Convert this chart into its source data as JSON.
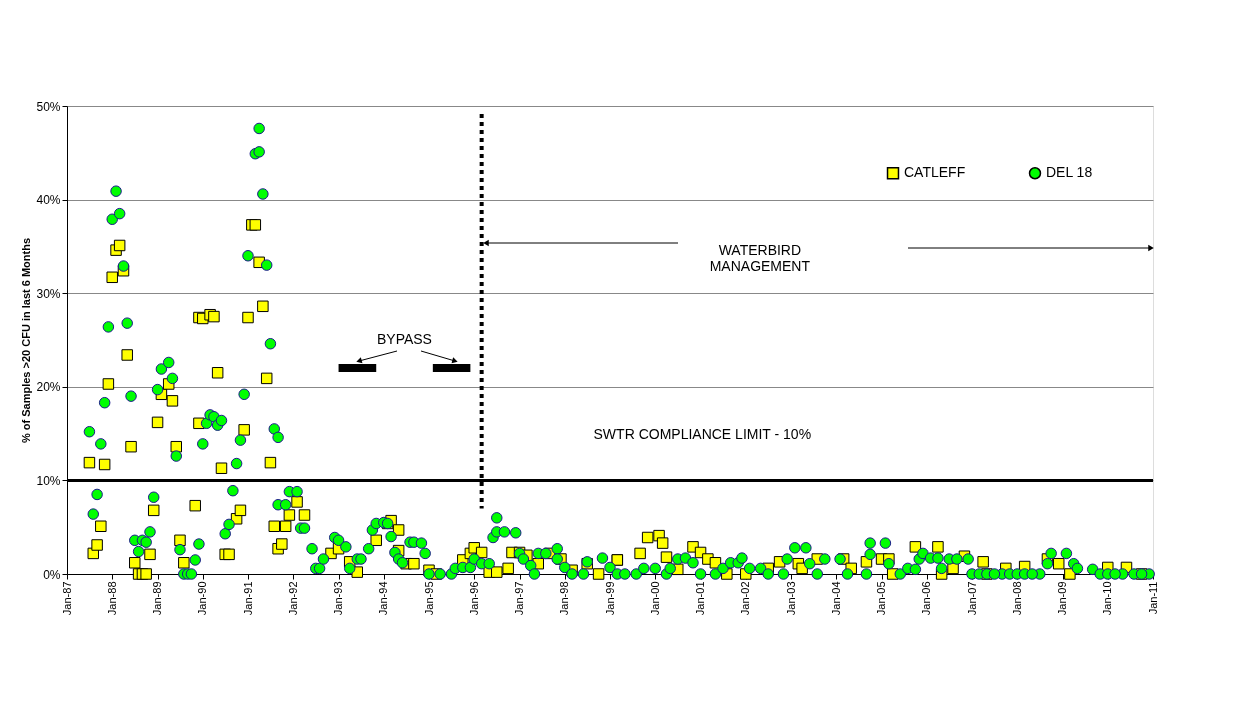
{
  "chart_data": {
    "type": "scatter",
    "ylabel": "% of Samples >20 CFU in last 6 Months",
    "xlim": [
      "1987-01",
      "2011-01"
    ],
    "xticks": [
      {
        "value": "1987-01",
        "label": "Jan-87"
      },
      {
        "value": "1988-01",
        "label": "Jan-88"
      },
      {
        "value": "1989-01",
        "label": "Jan-89"
      },
      {
        "value": "1990-01",
        "label": "Jan-90"
      },
      {
        "value": "1991-01",
        "label": "Jan-91"
      },
      {
        "value": "1992-01",
        "label": "Jan-92"
      },
      {
        "value": "1993-01",
        "label": "Jan-93"
      },
      {
        "value": "1994-01",
        "label": "Jan-94"
      },
      {
        "value": "1995-01",
        "label": "Jan-95"
      },
      {
        "value": "1996-01",
        "label": "Jan-96"
      },
      {
        "value": "1997-01",
        "label": "Jan-97"
      },
      {
        "value": "1998-01",
        "label": "Jan-98"
      },
      {
        "value": "1999-01",
        "label": "Jan-99"
      },
      {
        "value": "2000-01",
        "label": "Jan-00"
      },
      {
        "value": "2001-01",
        "label": "Jan-01"
      },
      {
        "value": "2002-01",
        "label": "Jan-02"
      },
      {
        "value": "2003-01",
        "label": "Jan-03"
      },
      {
        "value": "2004-01",
        "label": "Jan-04"
      },
      {
        "value": "2005-01",
        "label": "Jan-05"
      },
      {
        "value": "2006-01",
        "label": "Jan-06"
      },
      {
        "value": "2007-01",
        "label": "Jan-07"
      },
      {
        "value": "2008-01",
        "label": "Jan-08"
      },
      {
        "value": "2009-01",
        "label": "Jan-09"
      },
      {
        "value": "2010-01",
        "label": "Jan-10"
      },
      {
        "value": "2011-01",
        "label": "Jan-11"
      }
    ],
    "ylim": [
      0,
      50
    ],
    "yticks": [
      {
        "value": 0,
        "label": "0%"
      },
      {
        "value": 10,
        "label": "10%"
      },
      {
        "value": 20,
        "label": "20%"
      },
      {
        "value": 30,
        "label": "30%"
      },
      {
        "value": 40,
        "label": "40%"
      },
      {
        "value": 50,
        "label": "50%"
      }
    ],
    "grid": "y",
    "legend": "top right",
    "series": [
      {
        "name": "CATLEFF",
        "color": "#ffff00",
        "marker": "square",
        "x": [
          "1987-07",
          "1987-08",
          "1987-09",
          "1987-10",
          "1987-11",
          "1987-12",
          "1988-01",
          "1988-02",
          "1988-03",
          "1988-04",
          "1988-05",
          "1988-06",
          "1988-07",
          "1988-08",
          "1988-09",
          "1988-10",
          "1988-11",
          "1988-12",
          "1989-01",
          "1989-02",
          "1989-04",
          "1989-05",
          "1989-06",
          "1989-07",
          "1989-08",
          "1989-11",
          "1989-12",
          "1989-12",
          "1990-01",
          "1990-03",
          "1990-04",
          "1990-05",
          "1990-06",
          "1990-07",
          "1990-08",
          "1990-10",
          "1990-11",
          "1990-12",
          "1991-01",
          "1991-02",
          "1991-03",
          "1991-04",
          "1991-05",
          "1991-06",
          "1991-07",
          "1991-08",
          "1991-09",
          "1991-10",
          "1991-11",
          "1991-12",
          "1992-02",
          "1992-04",
          "1992-11",
          "1993-01",
          "1993-04",
          "1993-06",
          "1993-11",
          "1994-02",
          "1994-03",
          "1994-05",
          "1994-05",
          "1994-07",
          "1994-09",
          "1995-01",
          "1995-03",
          "1995-10",
          "1995-12",
          "1996-01",
          "1996-03",
          "1996-05",
          "1996-07",
          "1996-10",
          "1996-11",
          "1997-01",
          "1997-03",
          "1997-06",
          "1997-09",
          "1997-12",
          "1998-03",
          "1998-07",
          "1998-10",
          "1999-03",
          "1999-03",
          "1999-09",
          "1999-11",
          "2000-02",
          "2000-03",
          "2000-04",
          "2000-07",
          "2000-11",
          "2001-01",
          "2001-03",
          "2001-05",
          "2001-08",
          "2002-01",
          "2002-07",
          "2002-10",
          "2003-03",
          "2003-04",
          "2003-08",
          "2004-03",
          "2004-05",
          "2004-09",
          "2005-01",
          "2005-03",
          "2005-04",
          "2005-10",
          "2006-04",
          "2006-05",
          "2006-08",
          "2006-11",
          "2007-04",
          "2007-05",
          "2007-10",
          "2008-03",
          "2008-09",
          "2008-12",
          "2009-03",
          "2010-01",
          "2010-06",
          "2010-10"
        ],
        "values": [
          11.9,
          2.2,
          3.1,
          5.1,
          11.7,
          20.3,
          31.7,
          34.6,
          35.1,
          32.4,
          23.4,
          13.6,
          1.2,
          0,
          0,
          0,
          2.1,
          6.8,
          16.2,
          19.2,
          20.3,
          18.5,
          13.6,
          3.6,
          1.2,
          7.3,
          27.4,
          16.1,
          27.3,
          27.7,
          27.5,
          21.5,
          11.3,
          2.1,
          2.1,
          5.9,
          6.8,
          15.4,
          27.4,
          37.3,
          37.3,
          33.3,
          28.6,
          20.9,
          11.9,
          5.1,
          2.7,
          3.2,
          5.1,
          6.3,
          7.7,
          6.3,
          2.2,
          2.7,
          1.3,
          0.2,
          3.6,
          5.4,
          5.7,
          4.7,
          2.5,
          1.1,
          1.1,
          0.4,
          0,
          1.5,
          2.2,
          2.8,
          2.3,
          0.2,
          0.2,
          0.6,
          2.3,
          2.3,
          2.0,
          1.1,
          2.2,
          1.6,
          0.4,
          1.1,
          0,
          1.5,
          1.5,
          2.2,
          3.9,
          4.1,
          3.3,
          1.8,
          0.5,
          2.9,
          2.3,
          1.6,
          1.2,
          0,
          0,
          0.6,
          1.3,
          1.1,
          0.6,
          1.6,
          1.6,
          0.6,
          1.3,
          1.6,
          1.6,
          0,
          2.9,
          2.9,
          0,
          0.6,
          1.9,
          1.3,
          0,
          0.6,
          0.8,
          1.6,
          1.1,
          0,
          0.7,
          0.7,
          0
        ]
      },
      {
        "type": "line",
        "name": "BYPASS",
        "color": "#000000",
        "marker": "none",
        "line_style": "solid",
        "x": [
          "1993-01",
          "1993-11",
          "1994-06",
          "1995-02",
          "1995-12"
        ],
        "values": [
          22,
          22,
          null,
          22,
          22
        ]
      },
      {
        "name": "DEL 18",
        "color": "#00ff00",
        "marker": "circle",
        "x": [
          "1987-07",
          "1987-08",
          "1987-09",
          "1987-10",
          "1987-11",
          "1987-12",
          "1988-01",
          "1988-02",
          "1988-03",
          "1988-04",
          "1988-05",
          "1988-06",
          "1988-07",
          "1988-08",
          "1988-09",
          "1988-10",
          "1988-11",
          "1988-12",
          "1989-01",
          "1989-02",
          "1989-04",
          "1989-05",
          "1989-06",
          "1989-07",
          "1989-08",
          "1989-09",
          "1989-10",
          "1989-11",
          "1989-12",
          "1990-01",
          "1990-02",
          "1990-03",
          "1990-04",
          "1990-05",
          "1990-06",
          "1990-07",
          "1990-08",
          "1990-09",
          "1990-10",
          "1990-11",
          "1990-12",
          "1991-01",
          "1991-03",
          "1991-04",
          "1991-04",
          "1991-05",
          "1991-06",
          "1991-07",
          "1991-08",
          "1991-09",
          "1991-09",
          "1991-11",
          "1991-12",
          "1992-02",
          "1992-03",
          "1992-04",
          "1992-06",
          "1992-07",
          "1992-08",
          "1992-09",
          "1992-12",
          "1993-01",
          "1993-03",
          "1993-04",
          "1993-06",
          "1993-07",
          "1993-09",
          "1993-10",
          "1993-11",
          "1994-01",
          "1994-02",
          "1994-03",
          "1994-04",
          "1994-05",
          "1994-06",
          "1994-08",
          "1994-09",
          "1994-11",
          "1994-12",
          "1995-01",
          "1995-04",
          "1995-07",
          "1995-08",
          "1995-10",
          "1995-12",
          "1996-01",
          "1996-03",
          "1996-05",
          "1996-06",
          "1996-07",
          "1996-07",
          "1996-09",
          "1996-12",
          "1997-01",
          "1997-02",
          "1997-04",
          "1997-05",
          "1997-06",
          "1997-08",
          "1997-11",
          "1997-11",
          "1998-01",
          "1998-03",
          "1998-06",
          "1998-07",
          "1998-11",
          "1999-01",
          "1999-03",
          "1999-05",
          "1999-08",
          "1999-10",
          "2000-01",
          "2000-04",
          "2000-05",
          "2000-07",
          "2000-09",
          "2000-11",
          "2001-01",
          "2001-05",
          "2001-07",
          "2001-09",
          "2001-11",
          "2001-12",
          "2002-02",
          "2002-05",
          "2002-07",
          "2002-11",
          "2002-12",
          "2003-02",
          "2003-05",
          "2003-06",
          "2003-08",
          "2003-10",
          "2004-02",
          "2004-04",
          "2004-09",
          "2004-10",
          "2004-10",
          "2005-02",
          "2005-03",
          "2005-06",
          "2005-08",
          "2005-10",
          "2005-11",
          "2005-12",
          "2006-02",
          "2006-04",
          "2006-05",
          "2006-07",
          "2006-09",
          "2006-12",
          "2007-01",
          "2007-09",
          "2008-07",
          "2008-09",
          "2008-10",
          "2009-02",
          "2009-04",
          "2009-05",
          "2009-09",
          "2009-11",
          "2010-05",
          "2010-12",
          "2007-03",
          "2007-05",
          "2007-07",
          "2007-11",
          "2008-01",
          "2008-03",
          "2008-05",
          "2010-01",
          "2010-03",
          "2010-08",
          "2010-10"
        ],
        "values": [
          15.2,
          6.4,
          8.5,
          13.9,
          18.3,
          26.4,
          37.9,
          40.9,
          38.5,
          32.9,
          26.8,
          19.0,
          3.6,
          2.4,
          3.6,
          3.4,
          4.5,
          8.2,
          19.7,
          21.9,
          22.6,
          20.9,
          12.6,
          2.6,
          0,
          0,
          0,
          1.5,
          3.2,
          13.9,
          16.1,
          17.0,
          16.8,
          15.9,
          16.4,
          4.3,
          5.3,
          8.9,
          11.8,
          14.3,
          19.2,
          34.0,
          44.9,
          45.1,
          47.6,
          40.6,
          33.0,
          24.6,
          15.5,
          14.6,
          7.4,
          7.4,
          8.8,
          8.8,
          4.9,
          4.9,
          2.7,
          0.6,
          0.6,
          1.6,
          3.9,
          3.6,
          2.9,
          0.6,
          1.6,
          1.6,
          2.7,
          4.7,
          5.4,
          5.5,
          5.4,
          4.0,
          2.3,
          1.6,
          1.2,
          3.4,
          3.4,
          3.3,
          2.2,
          0,
          0,
          0,
          0.6,
          0.7,
          0.7,
          1.6,
          1.1,
          1.1,
          3.9,
          6.0,
          4.5,
          4.5,
          4.4,
          2.2,
          1.6,
          0.9,
          0,
          2.2,
          2.2,
          2.7,
          1.6,
          0.7,
          0,
          0,
          1.3,
          1.7,
          0.7,
          0,
          0,
          0,
          0.6,
          0.6,
          0,
          0.6,
          1.6,
          1.7,
          1.2,
          0,
          0,
          0.6,
          1.2,
          1.2,
          1.7,
          0.6,
          0.6,
          0,
          0,
          1.6,
          2.8,
          2.8,
          1.1,
          0,
          1.6,
          1.6,
          0,
          0,
          2.1,
          3.3,
          3.3,
          1.1,
          0,
          0.6,
          0.5,
          1.6,
          2.2,
          1.7,
          1.7,
          0.6,
          1.6,
          1.6,
          1.6,
          0,
          0,
          0,
          1.1,
          2.2,
          2.2,
          1.1,
          0.6,
          0.5,
          0,
          0,
          0,
          0,
          0,
          0,
          0,
          0,
          0,
          0,
          0,
          0,
          0,
          0
        ]
      }
    ],
    "ref_lines": [
      {
        "axis": "x",
        "value": "1996-03",
        "line_style": "dotted",
        "color": "#000000"
      },
      {
        "axis": "y",
        "value": 10,
        "label": "SWTR COMPLIANCE LIMIT - 10%",
        "line_style": "solid",
        "color": "#000000"
      }
    ],
    "annotations": [
      "WATERBIRD MANAGEMENT"
    ]
  }
}
